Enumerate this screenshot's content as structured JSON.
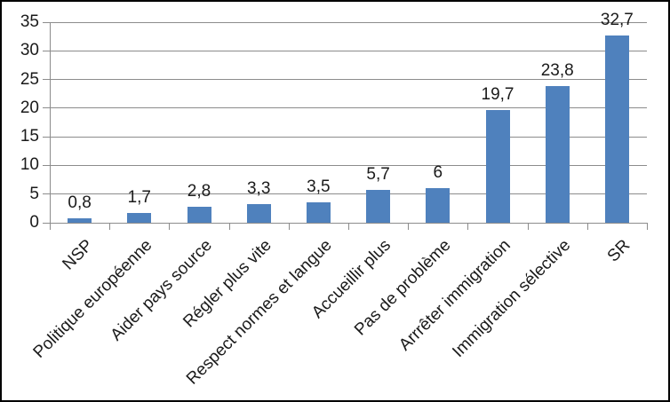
{
  "chart_data": {
    "type": "bar",
    "title": "",
    "xlabel": "",
    "ylabel": "",
    "categories": [
      "NSP",
      "Politique européenne",
      "Aider pays source",
      "Régler plus vite",
      "Respect normes et langue",
      "Accueillir plus",
      "Pas de problème",
      "Arrrêter immigration",
      "Immigration sélective",
      "SR"
    ],
    "values": [
      0.8,
      1.7,
      2.8,
      3.3,
      3.5,
      5.7,
      6,
      19.7,
      23.8,
      32.7
    ],
    "value_labels": [
      "0,8",
      "1,7",
      "2,8",
      "3,3",
      "3,5",
      "5,7",
      "6",
      "19,7",
      "23,8",
      "32,7"
    ],
    "ylim": [
      0,
      35
    ],
    "ytick_step": 5,
    "ytick_labels": [
      "0",
      "5",
      "10",
      "15",
      "20",
      "25",
      "30",
      "35"
    ],
    "grid": true,
    "legend": false,
    "x_labels_rotation_deg": 45,
    "colors": {
      "bar": "#4F81BD",
      "gridline": "#8C8C8C",
      "axis": "#8C8C8C",
      "text": "#1a1a1a",
      "background": "#FFFFFF",
      "border": "#000000"
    }
  }
}
